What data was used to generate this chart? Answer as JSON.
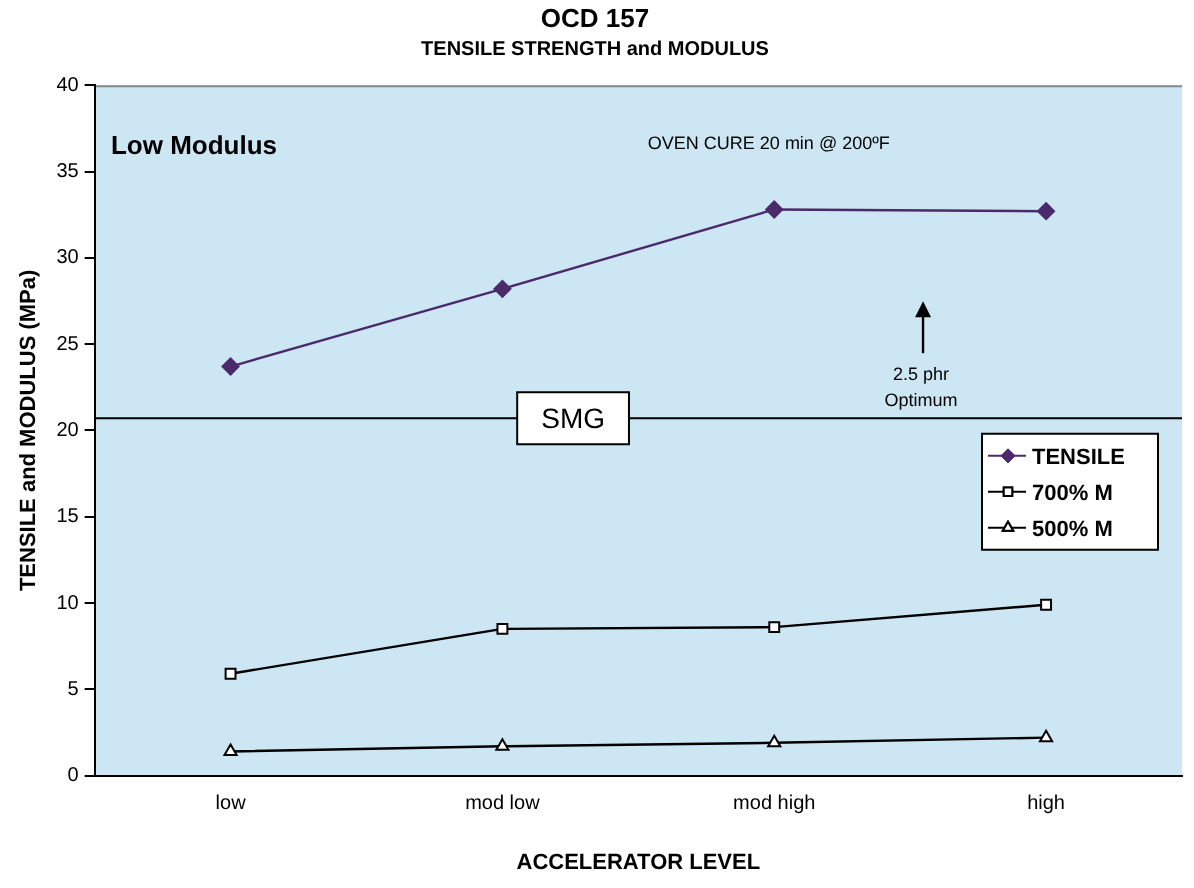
{
  "chart_data": {
    "type": "line",
    "title": "OCD 157",
    "subtitle": "TENSILE STRENGTH and MODULUS",
    "xlabel": "ACCELERATOR LEVEL",
    "ylabel": "TENSILE and MODULUS (MPa)",
    "categories": [
      "low",
      "mod low",
      "mod high",
      "high"
    ],
    "series": [
      {
        "name": "TENSILE",
        "color": "#4b2a6b",
        "marker": "diamond",
        "values": [
          23.7,
          28.2,
          32.8,
          32.7
        ]
      },
      {
        "name": "700% M",
        "color": "#000000",
        "marker": "square",
        "values": [
          5.9,
          8.5,
          8.6,
          9.9
        ]
      },
      {
        "name": "500% M",
        "color": "#000000",
        "marker": "triangle",
        "values": [
          1.4,
          1.7,
          1.9,
          2.2
        ]
      }
    ],
    "ylim": [
      0,
      40
    ],
    "yticks": [
      0,
      5,
      10,
      15,
      20,
      25,
      30,
      35,
      40
    ],
    "grid": false,
    "legend": "right",
    "line_style": "solid",
    "ref_lines": [
      {
        "axis": "y",
        "value": 20.7,
        "label": "SMG",
        "color": "#000000"
      }
    ],
    "annotations": [
      "Low Modulus",
      "OVEN CURE 20 min @ 200ºF",
      "2.5 phr Optimum"
    ]
  }
}
